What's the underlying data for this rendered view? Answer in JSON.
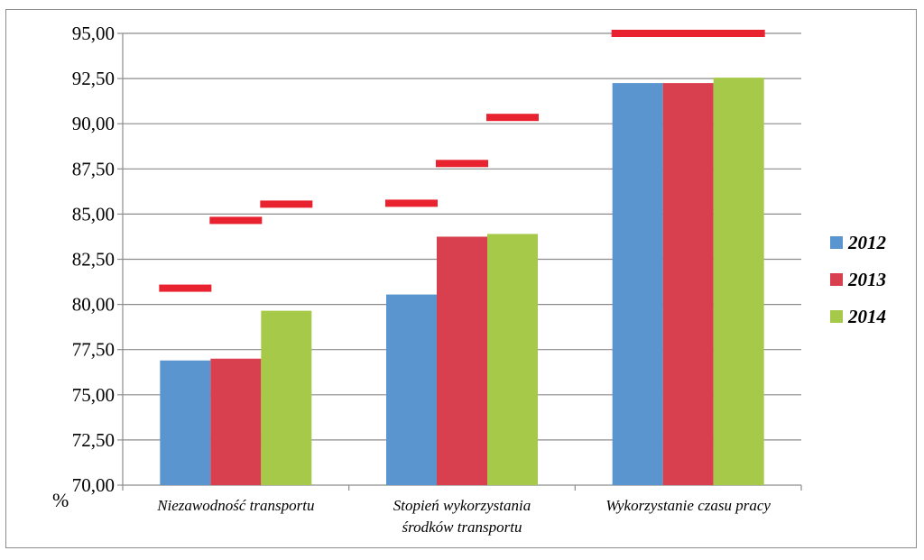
{
  "chart_data": {
    "type": "bar",
    "title": "",
    "xlabel": "",
    "ylabel": "%",
    "ylim": [
      70,
      95
    ],
    "yticks": [
      "70,00",
      "72,50",
      "75,00",
      "77,50",
      "80,00",
      "82,50",
      "85,00",
      "87,50",
      "90,00",
      "92,50",
      "95,00"
    ],
    "yticks_values": [
      70,
      72.5,
      75,
      77.5,
      80,
      82.5,
      85,
      87.5,
      90,
      92.5,
      95
    ],
    "grid": true,
    "legend_position": "right",
    "categories": [
      [
        "Niezawodność transportu"
      ],
      [
        "Stopień wykorzystania",
        "środków transportu"
      ],
      [
        "Wykorzystanie czasu pracy"
      ]
    ],
    "series": [
      {
        "name": "2012",
        "color": "#5b95cf",
        "values": [
          76.9,
          80.55,
          92.25
        ],
        "targets": [
          80.9,
          85.6,
          95.0
        ]
      },
      {
        "name": "2013",
        "color": "#d9404f",
        "values": [
          77.0,
          83.75,
          92.25
        ],
        "targets": [
          84.65,
          87.8,
          95.0
        ]
      },
      {
        "name": "2014",
        "color": "#a6c94a",
        "values": [
          79.65,
          83.9,
          92.55
        ],
        "targets": [
          85.55,
          90.35,
          95.0
        ]
      }
    ],
    "target_marker_color": "#e8232f"
  }
}
